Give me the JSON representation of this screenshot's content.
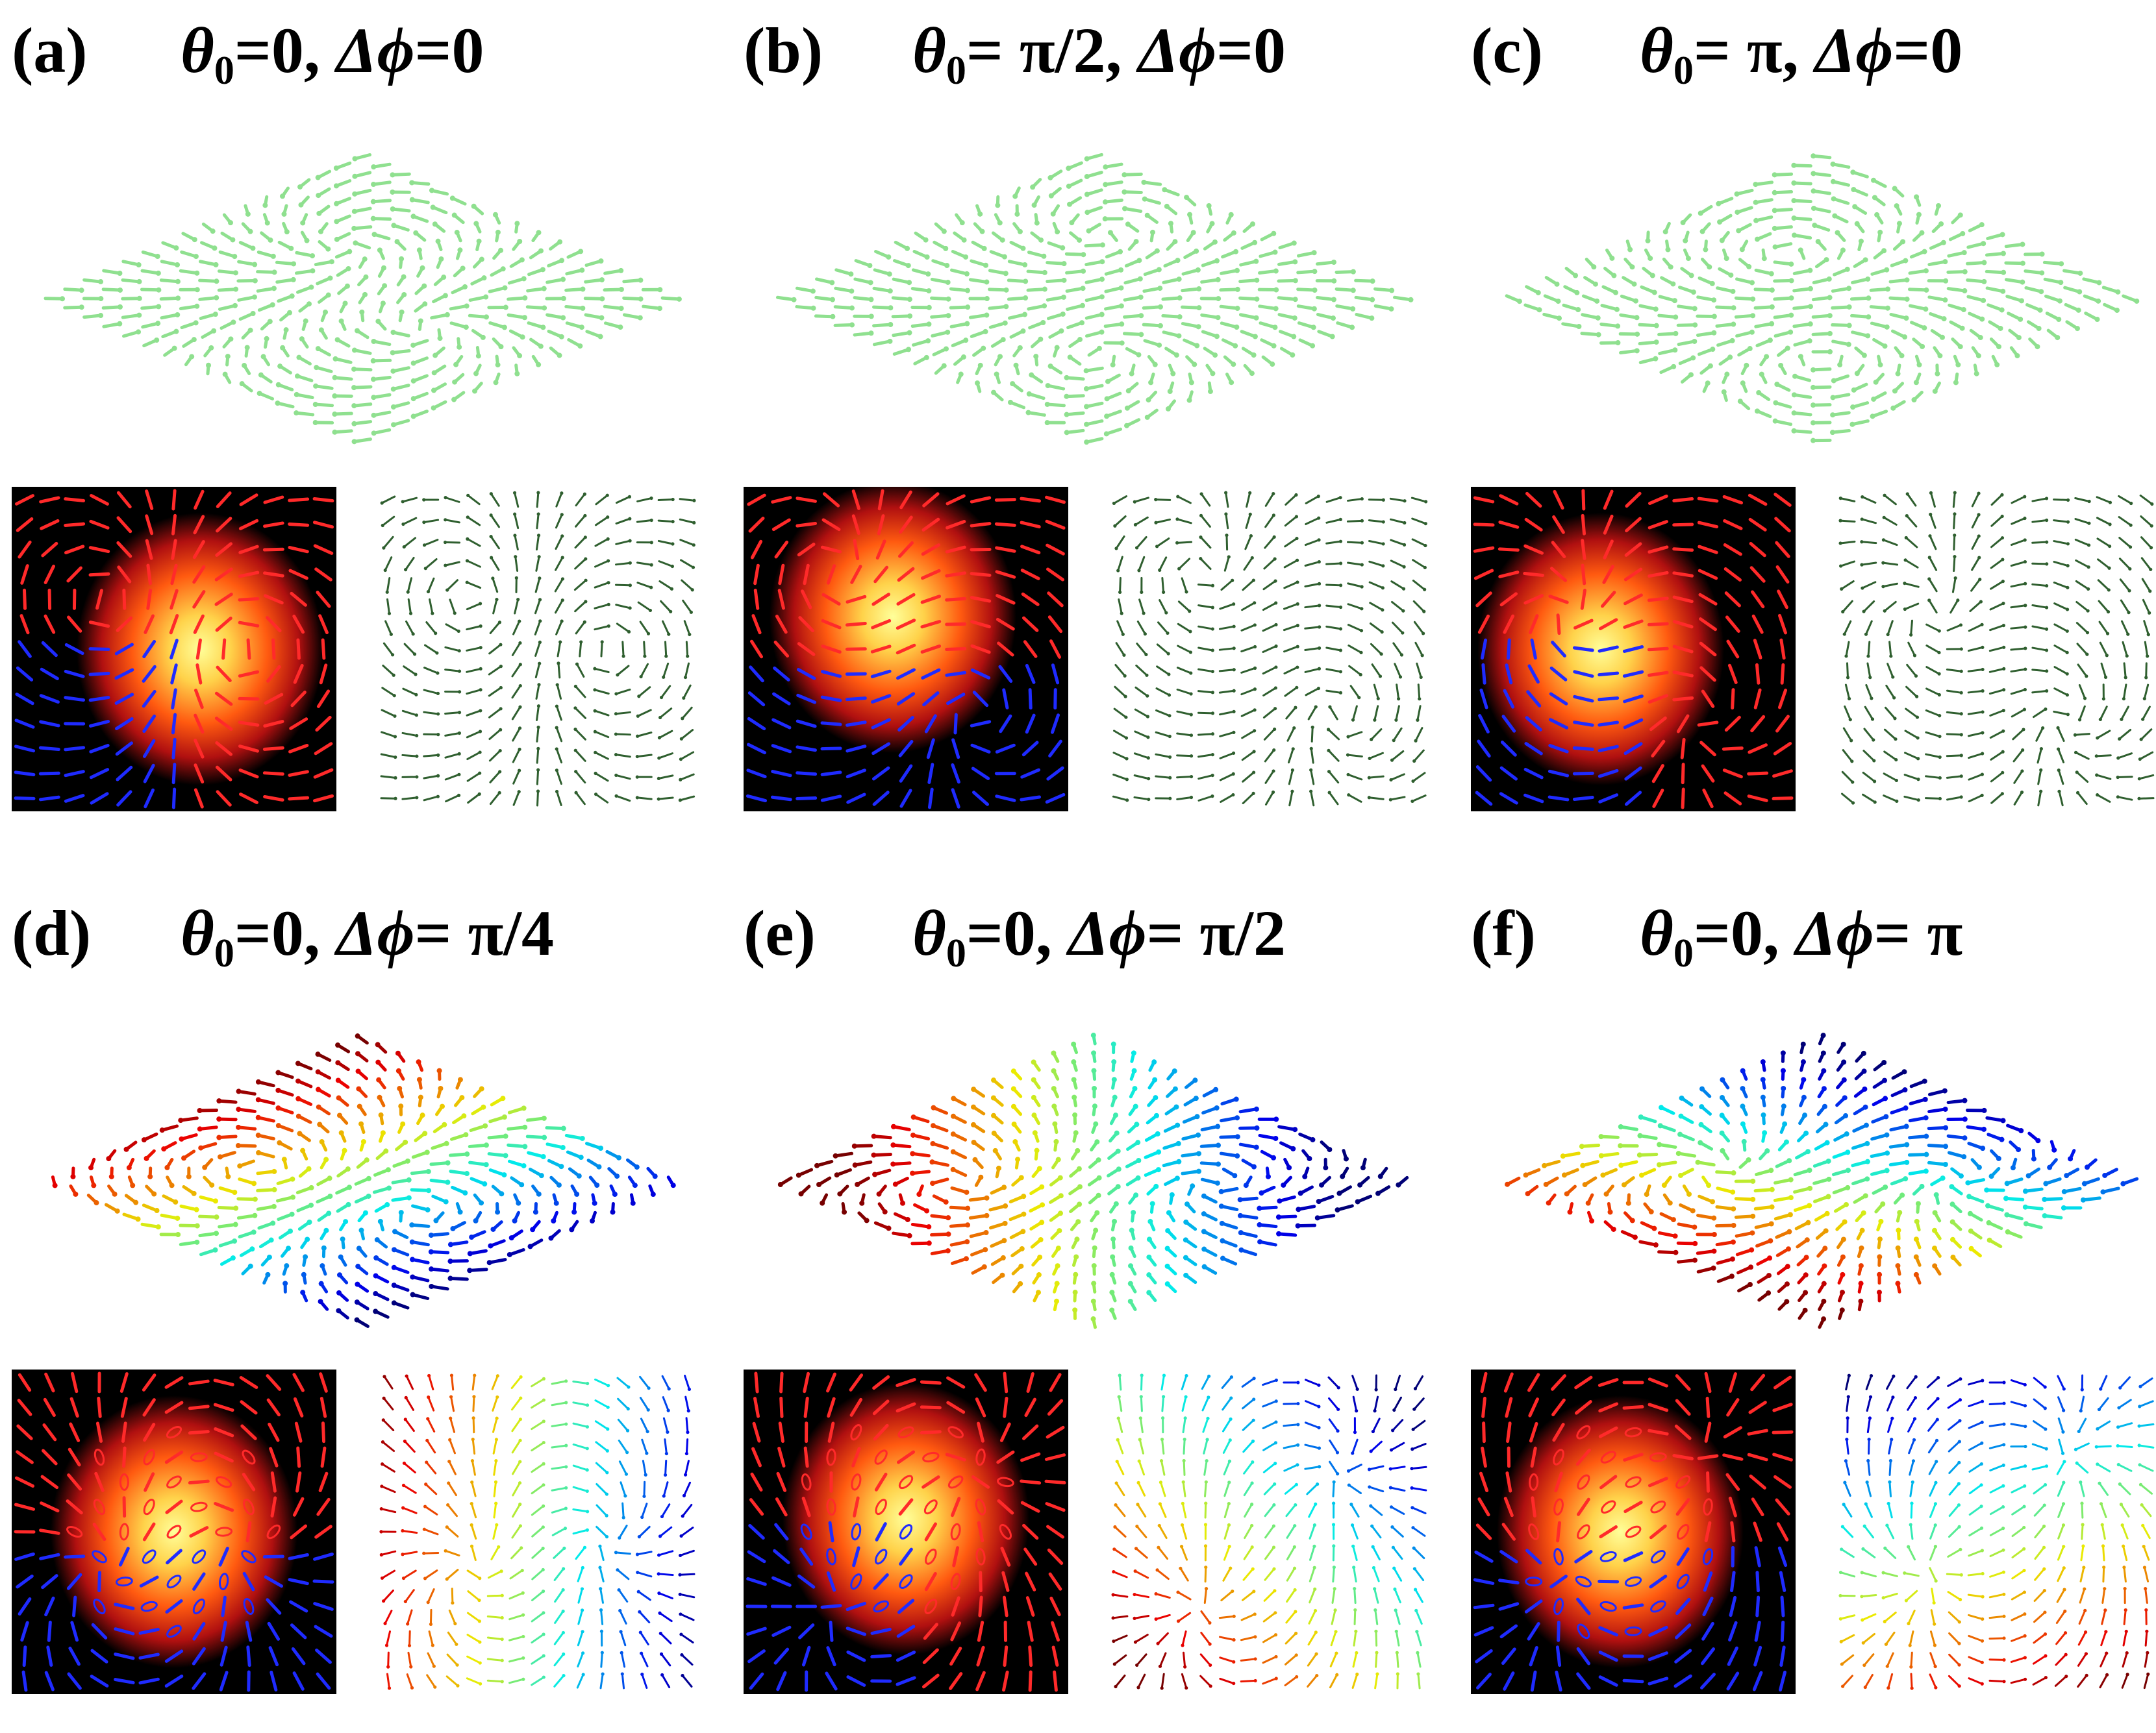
{
  "panels": [
    {
      "label": "(a)",
      "theta": "0",
      "dphi": "0",
      "field_colored": false
    },
    {
      "label": "(b)",
      "theta": " π/2",
      "dphi": "0",
      "field_colored": false
    },
    {
      "label": "(c)",
      "theta": " π",
      "dphi": "0",
      "field_colored": false
    },
    {
      "label": "(d)",
      "theta": "0",
      "dphi": " π/4",
      "field_colored": true
    },
    {
      "label": "(e)",
      "theta": "0",
      "dphi": " π/2",
      "field_colored": true
    },
    {
      "label": "(f)",
      "theta": "0",
      "dphi": " π",
      "field_colored": true
    }
  ],
  "symbols": {
    "theta": "θ",
    "sub": "0",
    "delta_phi": "Δϕ"
  },
  "colors": {
    "arrow_green": "#8fe08f",
    "arrow_dark": "#2f5f2f",
    "red": "#ff2a2a",
    "blue": "#1f2bff"
  }
}
